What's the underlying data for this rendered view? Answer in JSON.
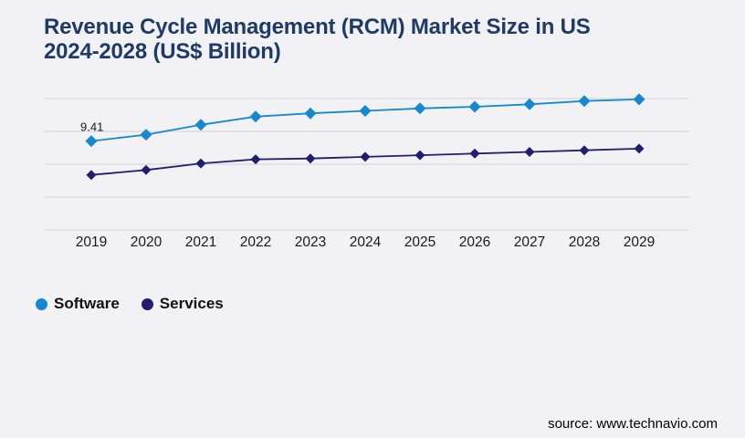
{
  "header": {
    "title_lines": [
      "Revenue Cycle Management (RCM) Market Size in US",
      "2024-2028 (US$ Billion)"
    ]
  },
  "chart_data": {
    "type": "line",
    "title": "Revenue Cycle Management (RCM) Market Size in US 2024-2028 (US$ Billion)",
    "xlabel": "",
    "ylabel": "",
    "categories": [
      "2019",
      "2020",
      "2021",
      "2022",
      "2023",
      "2024",
      "2025",
      "2026",
      "2027",
      "2028",
      "2029"
    ],
    "series": [
      {
        "name": "Software",
        "color": "#1688d2",
        "marker": "diamond",
        "values": [
          9.41,
          9.8,
          10.4,
          10.9,
          11.1,
          11.25,
          11.4,
          11.5,
          11.65,
          11.85,
          11.95
        ]
      },
      {
        "name": "Services",
        "color": "#211e72",
        "marker": "diamond",
        "values": [
          7.35,
          7.65,
          8.05,
          8.3,
          8.35,
          8.45,
          8.55,
          8.65,
          8.75,
          8.85,
          8.95
        ]
      }
    ],
    "ylim": [
      4,
      12
    ],
    "gridline_values": [
      4,
      6,
      8,
      10,
      12
    ],
    "grid": true,
    "y_axis_labels_visible": false,
    "point_label": {
      "series": "Software",
      "category": "2019",
      "text": "9.41"
    },
    "legend_position": "bottom-left",
    "gridline_color": "#d2d2d7",
    "axis_text_color": "#1a1a1a"
  },
  "source": {
    "label": "source: www.technavio.com"
  }
}
